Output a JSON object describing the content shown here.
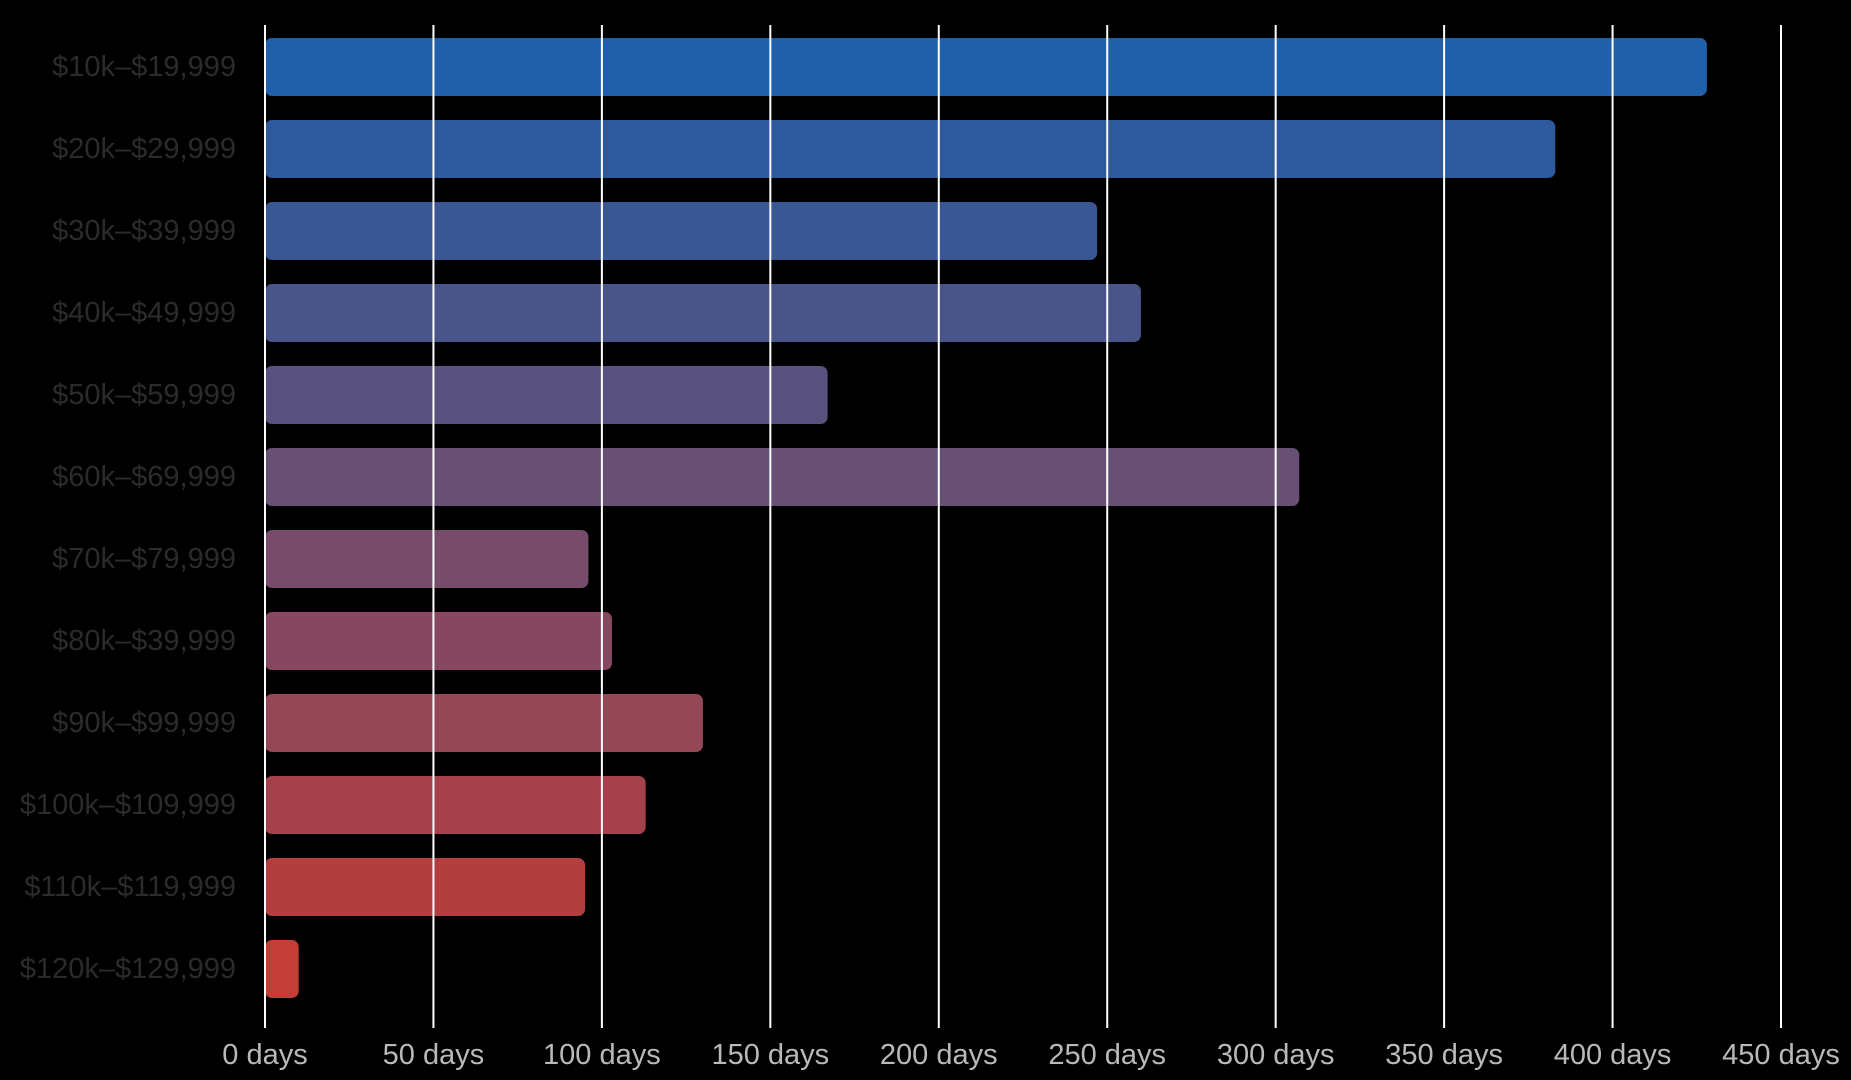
{
  "chart_data": {
    "type": "bar",
    "orientation": "horizontal",
    "categories": [
      "$10k–$19,999",
      "$20k–$29,999",
      "$30k–$39,999",
      "$40k–$49,999",
      "$50k–$59,999",
      "$60k–$69,999",
      "$70k–$79,999",
      "$80k–$39,999",
      "$90k–$99,999",
      "$100k–$109,999",
      "$110k–$119,999",
      "$120k–$129,999"
    ],
    "values": [
      428,
      383,
      247,
      260,
      167,
      307,
      96,
      103,
      130,
      113,
      95,
      10
    ],
    "colors": [
      "#2368b8",
      "#3262aa",
      "#405ea0",
      "#4f5b95",
      "#615889",
      "#71577e",
      "#815374",
      "#934d69",
      "#a14d5d",
      "#b24753",
      "#c14345",
      "#d2433c"
    ],
    "xlim": [
      0,
      450
    ],
    "xticks": [
      {
        "value": 0,
        "label": "0 days"
      },
      {
        "value": 50,
        "label": "50 days"
      },
      {
        "value": 100,
        "label": "100 days"
      },
      {
        "value": 150,
        "label": "150 days"
      },
      {
        "value": 200,
        "label": "200 days"
      },
      {
        "value": 250,
        "label": "250 days"
      },
      {
        "value": 300,
        "label": "300 days"
      },
      {
        "value": 350,
        "label": "350 days"
      },
      {
        "value": 400,
        "label": "400 days"
      },
      {
        "value": 450,
        "label": "450 days"
      }
    ],
    "title": "",
    "xlabel": "",
    "ylabel": "",
    "grid": true,
    "legend": "none"
  }
}
